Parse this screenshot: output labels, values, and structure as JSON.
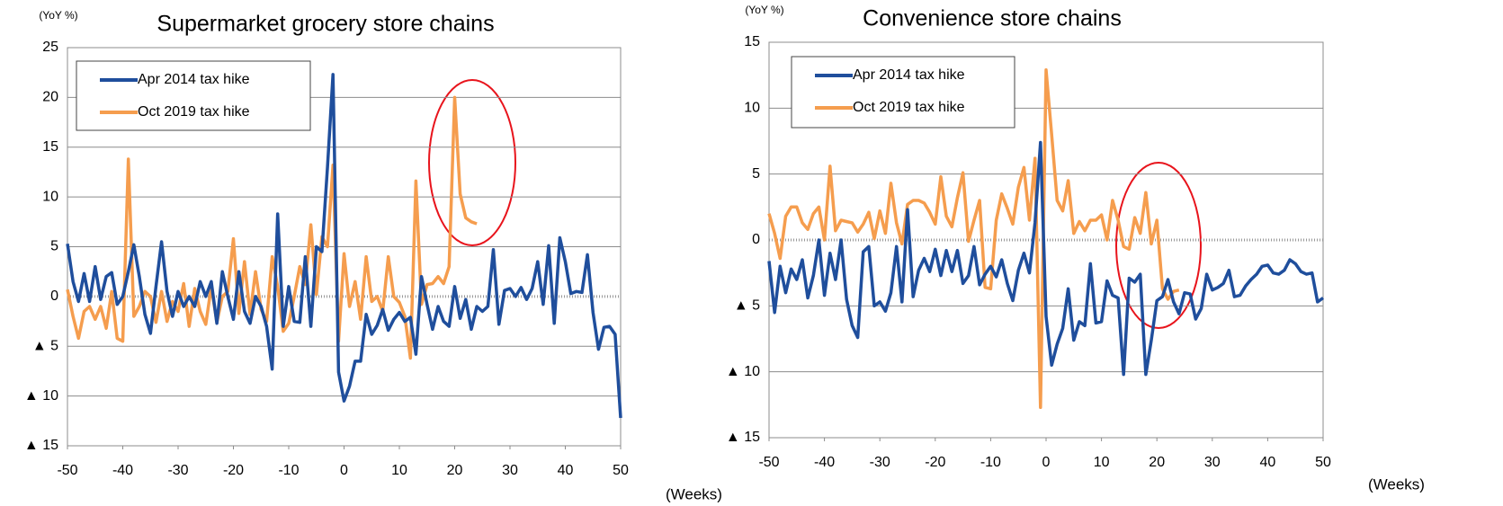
{
  "chart_data": [
    {
      "type": "line",
      "title": "Supermarket grocery store chains",
      "y_label": "(YoY %)",
      "x_label": "(Weeks)",
      "x": [
        -50,
        -49,
        -48,
        -47,
        -46,
        -45,
        -44,
        -43,
        -42,
        -41,
        -40,
        -39,
        -38,
        -37,
        -36,
        -35,
        -34,
        -33,
        -32,
        -31,
        -30,
        -29,
        -28,
        -27,
        -26,
        -25,
        -24,
        -23,
        -22,
        -21,
        -20,
        -19,
        -18,
        -17,
        -16,
        -15,
        -14,
        -13,
        -12,
        -11,
        -10,
        -9,
        -8,
        -7,
        -6,
        -5,
        -4,
        -3,
        -2,
        -1,
        0,
        1,
        2,
        3,
        4,
        5,
        6,
        7,
        8,
        9,
        10,
        11,
        12,
        13,
        14,
        15,
        16,
        17,
        18,
        19,
        20,
        21,
        22,
        23,
        24,
        25,
        26,
        27,
        28,
        29,
        30,
        31,
        32,
        33,
        34,
        35,
        36,
        37,
        38,
        39,
        40,
        41,
        42,
        43,
        44,
        45,
        46,
        47,
        48,
        49,
        50
      ],
      "xlim": [
        -50,
        50
      ],
      "xticks": [
        -50,
        -40,
        -30,
        -20,
        -10,
        0,
        10,
        20,
        30,
        40,
        50
      ],
      "ylim": [
        -15,
        25
      ],
      "yticks": [
        {
          "value": -15,
          "label": "▲ 15"
        },
        {
          "value": -10,
          "label": "▲ 10"
        },
        {
          "value": -5,
          "label": "▲ 5"
        },
        0,
        5,
        10,
        15,
        20,
        25
      ],
      "grid": true,
      "legend": "upper left",
      "series": [
        {
          "name": "Apr 2014 tax hike",
          "color": "#1f4e9c",
          "values": [
            5.3,
            1.5,
            -0.5,
            2.3,
            -0.5,
            3,
            -0.3,
            2,
            2.4,
            -0.8,
            0,
            2.5,
            5.2,
            2,
            -1.8,
            -3.7,
            1,
            5.5,
            0.5,
            -2,
            0.5,
            -1,
            0,
            -1,
            1.5,
            0,
            1.5,
            -2.7,
            2.5,
            0,
            -2.3,
            2.5,
            -1.5,
            -2.7,
            0,
            -1,
            -3,
            -7.3,
            8.3,
            -3,
            1,
            -2.5,
            -2.6,
            4,
            -3,
            5,
            4.5,
            13,
            22.3,
            -7.6,
            -10.5,
            -9,
            -6.5,
            -6.5,
            -1.8,
            -3.8,
            -2.9,
            -1.3,
            -3.4,
            -2.3,
            -1.6,
            -2.5,
            -2.1,
            -5.8,
            2,
            -0.8,
            -3.3,
            -1,
            -2.5,
            -3,
            1,
            -2.2,
            -0.3,
            -3.3,
            -1,
            -1.5,
            -1,
            4.7,
            -2.8,
            0.6,
            0.8,
            0,
            0.9,
            -0.3,
            0.8,
            3.5,
            -0.8,
            5.1,
            -2.7,
            5.9,
            3.5,
            0.3,
            0.5,
            0.4,
            4.2,
            -1.6,
            -5.3,
            -3.1,
            -3,
            -3.8,
            -12.2
          ]
        },
        {
          "name": "Oct 2019 tax hike",
          "color": "#f59d4e",
          "values": [
            0.7,
            -2,
            -4.2,
            -1.5,
            -1,
            -2.3,
            -1,
            -3.2,
            0.5,
            -4.2,
            -4.5,
            13.8,
            -2,
            -1,
            0.5,
            0,
            -2.6,
            0.5,
            -2.5,
            -0.5,
            -1.5,
            1.3,
            -3,
            0.8,
            -1.5,
            -2.8,
            1,
            -2.6,
            0,
            0.5,
            5.8,
            -1.7,
            3.5,
            -1.8,
            2.5,
            -1.3,
            -2.5,
            4,
            1,
            -3.5,
            -2.7,
            0,
            3,
            1.2,
            7.2,
            0.2,
            6,
            5,
            13.2,
            -4.5,
            4.3,
            -1,
            1.5,
            -2.3,
            4,
            -0.5,
            0,
            -1.5,
            4,
            0,
            -0.6,
            -2,
            -6.2,
            11.6,
            -0.8,
            1.2,
            1.3,
            2,
            1.3,
            3,
            20,
            10.3,
            7.9,
            7.5,
            7.3,
            null,
            null,
            null,
            null,
            null,
            null,
            null,
            null,
            null,
            null,
            null,
            null,
            null,
            null,
            null,
            null,
            null,
            null,
            null,
            null,
            null,
            null,
            null,
            null,
            null,
            null
          ]
        }
      ]
    },
    {
      "type": "line",
      "title": "Convenience store chains",
      "y_label": "(YoY %)",
      "x_label": "(Weeks)",
      "x": [
        -50,
        -49,
        -48,
        -47,
        -46,
        -45,
        -44,
        -43,
        -42,
        -41,
        -40,
        -39,
        -38,
        -37,
        -36,
        -35,
        -34,
        -33,
        -32,
        -31,
        -30,
        -29,
        -28,
        -27,
        -26,
        -25,
        -24,
        -23,
        -22,
        -21,
        -20,
        -19,
        -18,
        -17,
        -16,
        -15,
        -14,
        -13,
        -12,
        -11,
        -10,
        -9,
        -8,
        -7,
        -6,
        -5,
        -4,
        -3,
        -2,
        -1,
        0,
        1,
        2,
        3,
        4,
        5,
        6,
        7,
        8,
        9,
        10,
        11,
        12,
        13,
        14,
        15,
        16,
        17,
        18,
        19,
        20,
        21,
        22,
        23,
        24,
        25,
        26,
        27,
        28,
        29,
        30,
        31,
        32,
        33,
        34,
        35,
        36,
        37,
        38,
        39,
        40,
        41,
        42,
        43,
        44,
        45,
        46,
        47,
        48,
        49,
        50
      ],
      "xlim": [
        -50,
        50
      ],
      "xticks": [
        -50,
        -40,
        -30,
        -20,
        -10,
        0,
        10,
        20,
        30,
        40,
        50
      ],
      "ylim": [
        -15,
        15
      ],
      "yticks": [
        {
          "value": -15,
          "label": "▲ 15"
        },
        {
          "value": -10,
          "label": "▲ 10"
        },
        {
          "value": -5,
          "label": "▲ 5"
        },
        0,
        5,
        10,
        15
      ],
      "grid": true,
      "legend": "upper left",
      "series": [
        {
          "name": "Apr 2014 tax hike",
          "color": "#1f4e9c",
          "values": [
            -1.6,
            -5.5,
            -2,
            -4,
            -2.2,
            -3,
            -1.5,
            -4.4,
            -2.7,
            0,
            -4.2,
            -1,
            -3,
            0,
            -4.5,
            -6.5,
            -7.4,
            -0.9,
            -0.5,
            -5,
            -4.7,
            -5.4,
            -4,
            -0.5,
            -4.7,
            2.3,
            -4.3,
            -2.3,
            -1.4,
            -2.4,
            -0.7,
            -2.7,
            -0.8,
            -2.4,
            -0.8,
            -3.3,
            -2.7,
            -0.5,
            -3.4,
            -2.6,
            -2,
            -2.8,
            -1.5,
            -3.3,
            -4.6,
            -2.3,
            -1,
            -2.5,
            1.3,
            7.4,
            -5.8,
            -9.5,
            -7.9,
            -6.7,
            -3.7,
            -7.6,
            -6.2,
            -6.5,
            -1.8,
            -6.3,
            -6.2,
            -3.1,
            -4.2,
            -4.4,
            -10.2,
            -2.9,
            -3.2,
            -2.6,
            -10.2,
            -7.6,
            -4.6,
            -4.3,
            -3,
            -4.7,
            -5.6,
            -4,
            -4.1,
            -6,
            -5.2,
            -2.6,
            -3.8,
            -3.6,
            -3.3,
            -2.3,
            -4.3,
            -4.2,
            -3.5,
            -3,
            -2.6,
            -2,
            -1.9,
            -2.5,
            -2.6,
            -2.3,
            -1.5,
            -1.8,
            -2.4,
            -2.6,
            -2.5,
            -4.7,
            -4.4
          ]
        },
        {
          "name": "Oct 2019 tax hike",
          "color": "#f59d4e",
          "values": [
            2,
            0.5,
            -1.4,
            1.8,
            2.5,
            2.5,
            1.3,
            0.8,
            2,
            2.5,
            0,
            5.6,
            0.7,
            1.5,
            1.4,
            1.3,
            0.6,
            1.2,
            2.1,
            0.1,
            2.2,
            0.5,
            4.3,
            1.3,
            -0.3,
            2.7,
            3,
            3,
            2.8,
            2.1,
            1.2,
            4.8,
            1.8,
            1,
            3.2,
            5.1,
            -0.1,
            1.5,
            3,
            -3.6,
            -3.7,
            1.5,
            3.5,
            2.4,
            1.2,
            4,
            5.5,
            1.5,
            6.2,
            -12.7,
            12.9,
            8,
            3,
            2.2,
            4.5,
            0.5,
            1.4,
            0.7,
            1.5,
            1.5,
            1.9,
            0,
            3,
            1.5,
            -0.5,
            -0.7,
            1.7,
            0.5,
            3.6,
            -0.3,
            1.5,
            -3.7,
            -4.5,
            -3.9,
            -3.8,
            null,
            null,
            null,
            null,
            null,
            null,
            null,
            null,
            null,
            null,
            null,
            null,
            null,
            null,
            null,
            null,
            null,
            null,
            null,
            null,
            null,
            null,
            null,
            null,
            null,
            null
          ]
        }
      ]
    }
  ]
}
